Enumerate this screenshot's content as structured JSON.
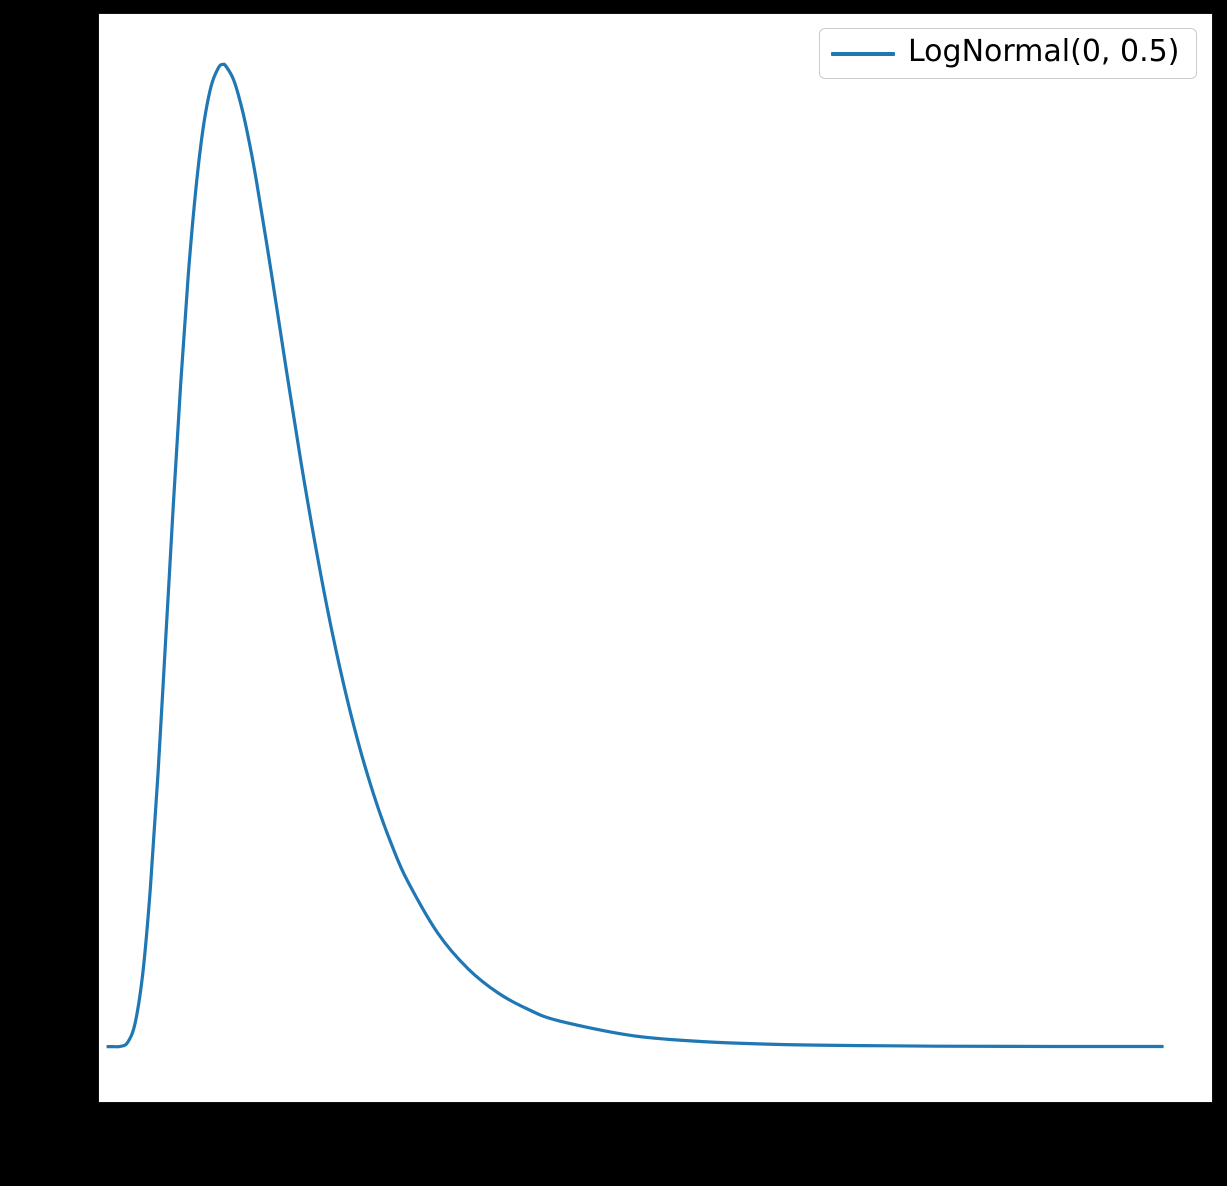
{
  "figure": {
    "background_color": "#000000",
    "axes_background_color": "#ffffff"
  },
  "legend": {
    "label": "LogNormal(0, 0.5)",
    "line_color": "#1f77b4",
    "border_color": "#cccccc",
    "location": "upper right"
  },
  "chart_data": {
    "type": "line",
    "title": "",
    "xlabel": "",
    "ylabel": "",
    "xlim": [
      -0.04,
      7.32
    ],
    "ylim": [
      -0.051,
      0.951
    ],
    "grid": false,
    "legend_position": "upper right",
    "line_color": "#1f77b4",
    "axes_facecolor": "#ffffff",
    "figure_facecolor": "#000000",
    "series": [
      {
        "name": "LogNormal(0, 0.5)",
        "x": [
          0.01,
          0.05,
          0.1,
          0.15,
          0.2,
          0.25,
          0.3,
          0.35,
          0.4,
          0.45,
          0.5,
          0.55,
          0.6,
          0.65,
          0.7,
          0.75,
          0.78,
          0.8,
          0.85,
          0.9,
          0.95,
          1.0,
          1.1,
          1.2,
          1.3,
          1.4,
          1.5,
          1.6,
          1.7,
          1.8,
          1.9,
          2.0,
          2.2,
          2.4,
          2.6,
          2.8,
          3.0,
          3.5,
          4.0,
          4.5,
          5.0,
          5.5,
          6.0,
          6.5,
          7.0
        ],
        "y": [
          0.0,
          0.0,
          0.0002,
          0.004,
          0.0224,
          0.0684,
          0.1465,
          0.2514,
          0.3723,
          0.4954,
          0.6106,
          0.7099,
          0.7891,
          0.8469,
          0.8838,
          0.9016,
          0.9046,
          0.9028,
          0.8904,
          0.867,
          0.8355,
          0.7979,
          0.7123,
          0.6222,
          0.5348,
          0.4546,
          0.3829,
          0.3206,
          0.2673,
          0.2221,
          0.1842,
          0.1526,
          0.1046,
          0.0718,
          0.0494,
          0.0342,
          0.0238,
          0.0099,
          0.0043,
          0.0019,
          0.0009,
          0.0004,
          0.0002,
          0.0001,
          0.0001
        ]
      }
    ]
  }
}
